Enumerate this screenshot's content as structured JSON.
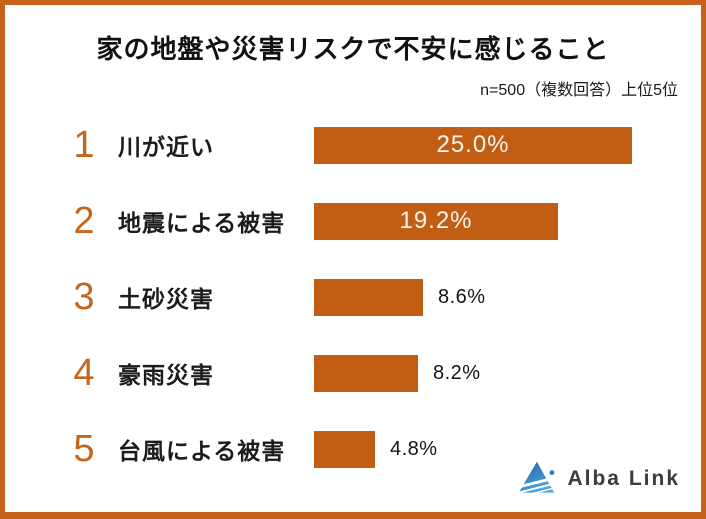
{
  "chart_data": {
    "type": "bar",
    "orientation": "horizontal",
    "title": "家の地盤や災害リスクで不安に感じること",
    "subtitle": "n=500（複数回答）上位5位",
    "categories": [
      "川が近い",
      "地震による被害",
      "土砂災害",
      "豪雨災害",
      "台風による被害"
    ],
    "ranks": [
      "1",
      "2",
      "3",
      "4",
      "5"
    ],
    "values": [
      25.0,
      19.2,
      8.6,
      8.2,
      4.8
    ],
    "value_labels": [
      "25.0%",
      "19.2%",
      "8.6%",
      "8.2%",
      "4.8%"
    ],
    "xlim": [
      0,
      25
    ],
    "grid": false,
    "legend": "none",
    "inside_label_min_value": 15,
    "colors": {
      "bar": "#c25e14",
      "rank_number": "#c3671f",
      "frame_border": "#c7601a",
      "inside_label": "#faf4ec",
      "outside_label": "#141414",
      "title_text": "#111111"
    }
  },
  "branding": {
    "logo_text": "Alba Link",
    "logo_icon": "mountain-triangle-icon",
    "logo_colors": {
      "triangle_top": "#1e5fa8",
      "triangle_bottom": "#54acdc",
      "dot": "#2a7abf"
    }
  }
}
